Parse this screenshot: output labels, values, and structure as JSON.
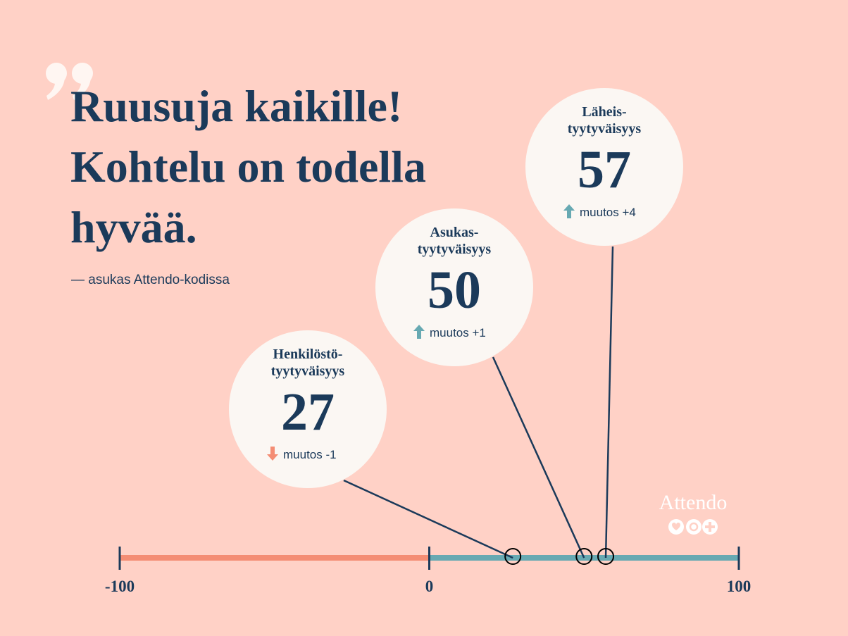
{
  "title": "Ruusuja kaikille! Kohtelu on todella hyvää.",
  "attribution": "— asukas Attendo-kodissa",
  "logo": "Attendo",
  "chart_data": {
    "type": "number_line",
    "xlim": [
      -100,
      100
    ],
    "xticks": [
      -100,
      0,
      100
    ],
    "negative_color": "#f48d74",
    "positive_color": "#67a9b2",
    "points": [
      {
        "label": [
          "Henkilöstö-",
          "tyytyväisyys"
        ],
        "value": 27,
        "change": -1,
        "change_label": "muutos -1"
      },
      {
        "label": [
          "Asukas-",
          "tyytyväisyys"
        ],
        "value": 50,
        "change": 1,
        "change_label": "muutos +1"
      },
      {
        "label": [
          "Läheis-",
          "tyytyväisyys"
        ],
        "value": 57,
        "change": 4,
        "change_label": "muutos +4"
      }
    ]
  }
}
